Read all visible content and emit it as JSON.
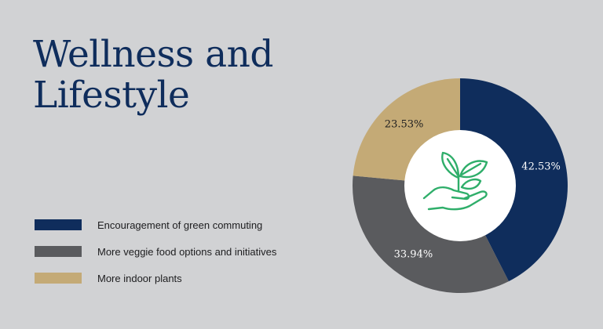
{
  "title": {
    "line1": "Wellness and",
    "line2": "Lifestyle"
  },
  "colors": {
    "background": "#d1d2d4",
    "navy": "#0f2d5c",
    "gray": "#5a5b5e",
    "tan": "#c4aa76",
    "icon_green": "#2fae6a",
    "center": "#ffffff"
  },
  "icon": "plant-in-hand-icon",
  "chart_data": {
    "type": "pie",
    "donut": true,
    "legend_position": "left",
    "start_angle_deg": 0,
    "direction": "clockwise",
    "series": [
      {
        "name": "Encouragement of green commuting",
        "value": 42.53,
        "label": "42.53%",
        "color": "#0f2d5c",
        "label_color": "#ffffff"
      },
      {
        "name": "More veggie food options and initiatives",
        "value": 33.94,
        "label": "33.94%",
        "color": "#5a5b5e",
        "label_color": "#ffffff"
      },
      {
        "name": "More indoor plants",
        "value": 23.53,
        "label": "23.53%",
        "color": "#c4aa76",
        "label_color": "#1d1d1f"
      }
    ]
  }
}
